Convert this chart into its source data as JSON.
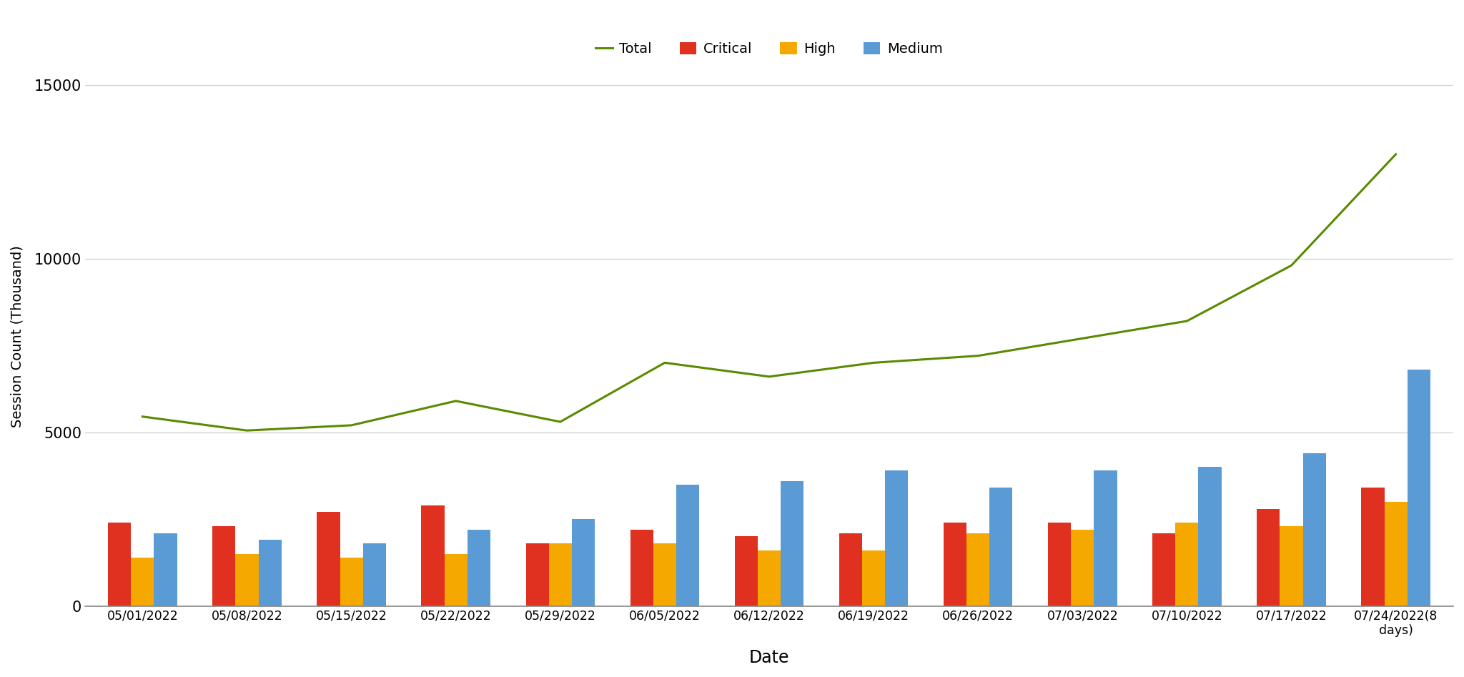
{
  "dates": [
    "05/01/2022",
    "05/08/2022",
    "05/15/2022",
    "05/22/2022",
    "05/29/2022",
    "06/05/2022",
    "06/12/2022",
    "06/19/2022",
    "06/26/2022",
    "07/03/2022",
    "07/10/2022",
    "07/17/2022",
    "07/24/2022(8\ndays)"
  ],
  "critical": [
    2400,
    2300,
    2700,
    2900,
    1800,
    2200,
    2000,
    2100,
    2400,
    2400,
    2100,
    2800,
    3400
  ],
  "high": [
    1400,
    1500,
    1400,
    1500,
    1800,
    1800,
    1600,
    1600,
    2100,
    2200,
    2400,
    2300,
    3000
  ],
  "medium": [
    2100,
    1900,
    1800,
    2200,
    2500,
    3500,
    3600,
    3900,
    3400,
    3900,
    4000,
    4400,
    6800
  ],
  "total": [
    5450,
    5050,
    5200,
    5900,
    5300,
    7000,
    6600,
    7000,
    7200,
    7700,
    8200,
    9800,
    13000
  ],
  "bar_colors": {
    "critical": "#e03020",
    "high": "#f5a800",
    "medium": "#5b9bd5"
  },
  "total_color": "#5a8a00",
  "ylabel": "Session Count (Thousand)",
  "xlabel": "Date",
  "ylim": [
    0,
    15500
  ],
  "yticks": [
    0,
    5000,
    10000,
    15000
  ],
  "legend_labels": [
    "Critical",
    "High",
    "Medium",
    "Total"
  ],
  "background_color": "#ffffff",
  "grid_color": "#d0d0d0"
}
